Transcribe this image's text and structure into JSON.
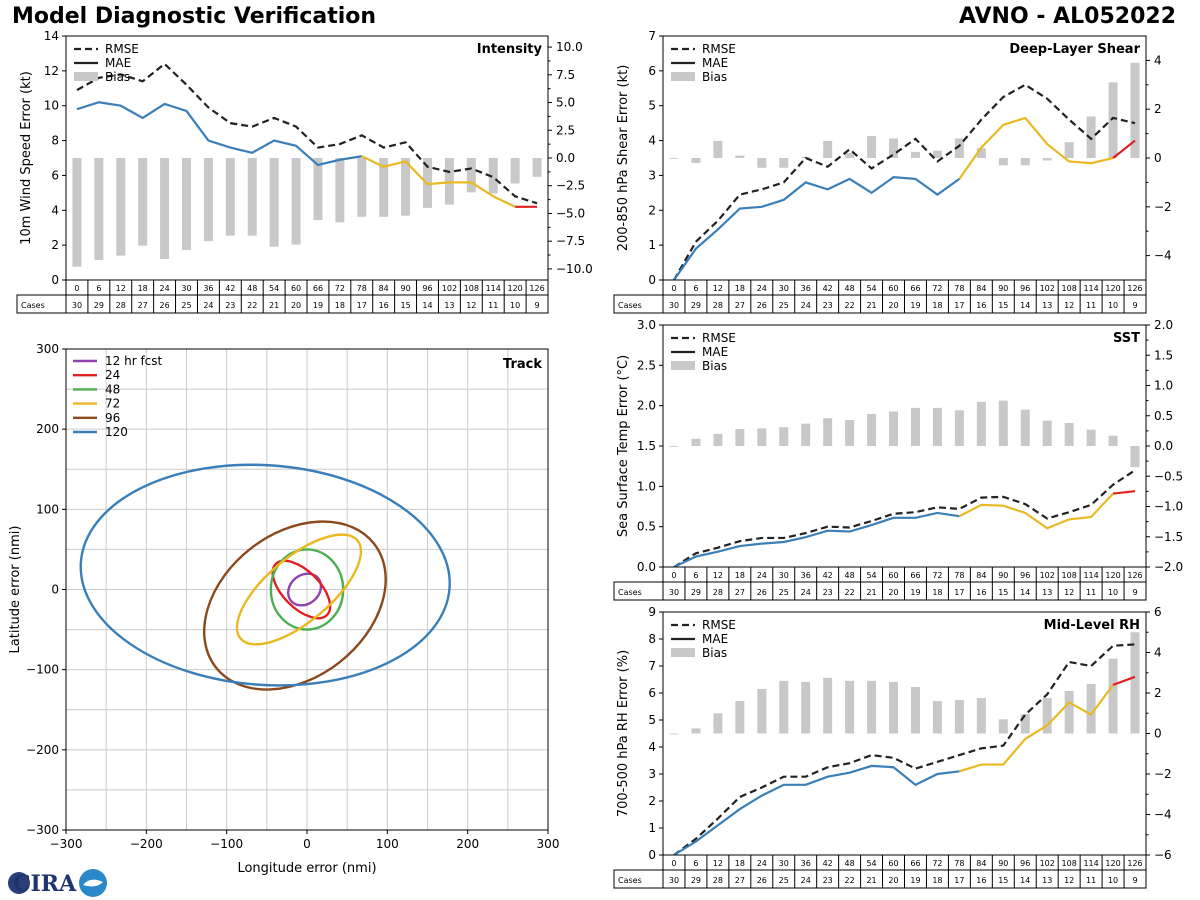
{
  "header": {
    "title": "Model Diagnostic Verification",
    "storm": "AVNO - AL052022"
  },
  "logo_text": "CIRA",
  "colors": {
    "rmse": "#222222",
    "mae_early": "#3a7fb8",
    "mae_mid": "#e8b923",
    "mae_late": "#e02020",
    "bias": "#c8c8c8",
    "grid": "#cccccc"
  },
  "legend_labels": {
    "rmse": "RMSE",
    "mae": "MAE",
    "bias": "Bias"
  },
  "cases_label": "Cases",
  "lead_times": [
    "0",
    "6",
    "12",
    "18",
    "24",
    "30",
    "36",
    "42",
    "48",
    "54",
    "60",
    "66",
    "72",
    "78",
    "84",
    "90",
    "96",
    "102",
    "108",
    "114",
    "120",
    "126"
  ],
  "cases": [
    "30",
    "29",
    "28",
    "27",
    "26",
    "25",
    "24",
    "23",
    "22",
    "21",
    "20",
    "19",
    "18",
    "17",
    "16",
    "15",
    "14",
    "13",
    "12",
    "11",
    "10",
    "9"
  ],
  "chart_data": [
    {
      "id": "intensity",
      "type": "line",
      "title": "Intensity",
      "ylabel": "10m Wind Speed Error (kt)",
      "ylim": [
        0,
        14
      ],
      "yticks": [
        "0",
        "2",
        "4",
        "6",
        "8",
        "10",
        "12",
        "14"
      ],
      "y2lim": [
        -11,
        11
      ],
      "y2ticks": [
        "−10.0",
        "−7.5",
        "−5.0",
        "−2.5",
        "0.0",
        "2.5",
        "5.0",
        "7.5",
        "10.0"
      ],
      "rmse": [
        10.9,
        11.6,
        11.8,
        11.4,
        12.4,
        11.2,
        9.9,
        9.0,
        8.8,
        9.3,
        8.8,
        7.6,
        7.8,
        8.3,
        7.6,
        7.9,
        6.5,
        6.2,
        6.4,
        5.9,
        4.8,
        4.4
      ],
      "mae": [
        9.8,
        10.2,
        10.0,
        9.3,
        10.1,
        9.7,
        8.0,
        7.6,
        7.3,
        8.0,
        7.7,
        6.6,
        6.9,
        7.1,
        6.5,
        6.8,
        5.5,
        5.6,
        5.6,
        4.8,
        4.2,
        4.2
      ],
      "bias": [
        -9.8,
        -9.2,
        -8.8,
        -7.9,
        -9.1,
        -8.3,
        -7.5,
        -7.0,
        -7.0,
        -8.0,
        -7.8,
        -5.6,
        -5.8,
        -5.3,
        -5.3,
        -5.2,
        -4.5,
        -4.2,
        -3.1,
        -3.2,
        -2.3,
        -1.7
      ]
    },
    {
      "id": "shear",
      "type": "line",
      "title": "Deep-Layer Shear",
      "ylabel": "200-850 hPa Shear Error (kt)",
      "ylim": [
        0,
        7
      ],
      "yticks": [
        "0",
        "1",
        "2",
        "3",
        "4",
        "5",
        "6",
        "7"
      ],
      "y2lim": [
        -5,
        5
      ],
      "y2ticks": [
        "−4",
        "−2",
        "0",
        "2",
        "4"
      ],
      "rmse": [
        0.0,
        1.1,
        1.7,
        2.45,
        2.6,
        2.8,
        3.5,
        3.25,
        3.75,
        3.2,
        3.6,
        4.05,
        3.4,
        3.85,
        4.6,
        5.25,
        5.6,
        5.2,
        4.6,
        4.05,
        4.65,
        4.5
      ],
      "mae": [
        0.0,
        0.9,
        1.45,
        2.05,
        2.1,
        2.3,
        2.8,
        2.6,
        2.9,
        2.5,
        2.95,
        2.9,
        2.45,
        2.9,
        3.8,
        4.45,
        4.65,
        3.9,
        3.4,
        3.35,
        3.5,
        4.0
      ],
      "bias": [
        0.0,
        -0.2,
        0.7,
        0.1,
        -0.4,
        -0.4,
        0.05,
        0.7,
        0.2,
        0.9,
        0.8,
        0.25,
        0.3,
        0.8,
        0.4,
        -0.3,
        -0.3,
        -0.1,
        0.65,
        1.7,
        3.1,
        3.9
      ]
    },
    {
      "id": "sst",
      "type": "line",
      "title": "SST",
      "ylabel": "Sea Surface Temp Error (°C)",
      "ylim": [
        0,
        3
      ],
      "yticks": [
        "0.0",
        "0.5",
        "1.0",
        "1.5",
        "2.0",
        "2.5",
        "3.0"
      ],
      "y2lim": [
        -2,
        2
      ],
      "y2ticks": [
        "−2.0",
        "−1.5",
        "−1.0",
        "−0.5",
        "0.0",
        "0.5",
        "1.0",
        "1.5",
        "2.0"
      ],
      "rmse": [
        0.0,
        0.17,
        0.24,
        0.32,
        0.36,
        0.36,
        0.42,
        0.5,
        0.49,
        0.57,
        0.66,
        0.68,
        0.74,
        0.72,
        0.86,
        0.87,
        0.78,
        0.6,
        0.68,
        0.77,
        1.02,
        1.2
      ],
      "mae": [
        0.0,
        0.13,
        0.19,
        0.26,
        0.29,
        0.31,
        0.37,
        0.45,
        0.44,
        0.52,
        0.61,
        0.61,
        0.67,
        0.63,
        0.77,
        0.76,
        0.67,
        0.48,
        0.59,
        0.62,
        0.91,
        0.94
      ],
      "bias": [
        0.0,
        0.12,
        0.2,
        0.28,
        0.29,
        0.31,
        0.37,
        0.46,
        0.43,
        0.53,
        0.57,
        0.63,
        0.63,
        0.59,
        0.73,
        0.75,
        0.6,
        0.42,
        0.38,
        0.27,
        0.17,
        -0.35
      ]
    },
    {
      "id": "rh",
      "type": "line",
      "title": "Mid-Level RH",
      "ylabel": "700-500 hPa RH Error (%)",
      "ylim": [
        0,
        9
      ],
      "yticks": [
        "0",
        "1",
        "2",
        "3",
        "4",
        "5",
        "6",
        "7",
        "8",
        "9"
      ],
      "y2lim": [
        -6,
        6
      ],
      "y2ticks": [
        "−6",
        "−4",
        "−2",
        "0",
        "2",
        "4",
        "6"
      ],
      "rmse": [
        0.0,
        0.6,
        1.35,
        2.15,
        2.5,
        2.9,
        2.9,
        3.25,
        3.4,
        3.7,
        3.6,
        3.2,
        3.45,
        3.7,
        3.95,
        4.05,
        5.2,
        5.95,
        7.15,
        7.0,
        7.75,
        7.8
      ],
      "mae": [
        0.0,
        0.5,
        1.1,
        1.7,
        2.2,
        2.6,
        2.6,
        2.9,
        3.05,
        3.3,
        3.25,
        2.6,
        3.0,
        3.1,
        3.35,
        3.35,
        4.3,
        4.8,
        5.65,
        5.2,
        6.3,
        6.6
      ],
      "bias": [
        0.0,
        0.25,
        1.0,
        1.6,
        2.2,
        2.6,
        2.55,
        2.75,
        2.6,
        2.6,
        2.55,
        2.3,
        1.6,
        1.65,
        1.75,
        0.7,
        0.95,
        1.75,
        2.1,
        2.45,
        3.7,
        5.0
      ]
    },
    {
      "id": "track",
      "type": "scatter",
      "title": "Track",
      "xlabel": "Longitude error (nmi)",
      "ylabel": "Latitude error (nmi)",
      "xlim": [
        -300,
        300
      ],
      "ylim": [
        -300,
        300
      ],
      "xticks": [
        "−300",
        "−200",
        "−100",
        "0",
        "100",
        "200",
        "300"
      ],
      "yticks": [
        "−300",
        "−200",
        "−100",
        "0",
        "100",
        "200",
        "300"
      ],
      "ellipses": [
        {
          "label": "12 hr fcst",
          "color": "#8e44ad",
          "cx": -3,
          "cy": 0,
          "rx": 22,
          "ry": 18,
          "angle": 40
        },
        {
          "label": "24",
          "color": "#e02020",
          "cx": -7,
          "cy": 0,
          "rx": 45,
          "ry": 23,
          "angle": -45
        },
        {
          "label": "48",
          "color": "#4caf50",
          "cx": 0,
          "cy": 0,
          "rx": 45,
          "ry": 50,
          "angle": 0
        },
        {
          "label": "72",
          "color": "#e8b923",
          "cx": -10,
          "cy": 0,
          "rx": 95,
          "ry": 40,
          "angle": 40
        },
        {
          "label": "96",
          "color": "#8b4a1e",
          "cx": -15,
          "cy": -20,
          "rx": 125,
          "ry": 90,
          "angle": 38
        },
        {
          "label": "120",
          "color": "#3a7fb8",
          "cx": -52,
          "cy": 18,
          "rx": 230,
          "ry": 137,
          "angle": -4
        }
      ]
    }
  ]
}
